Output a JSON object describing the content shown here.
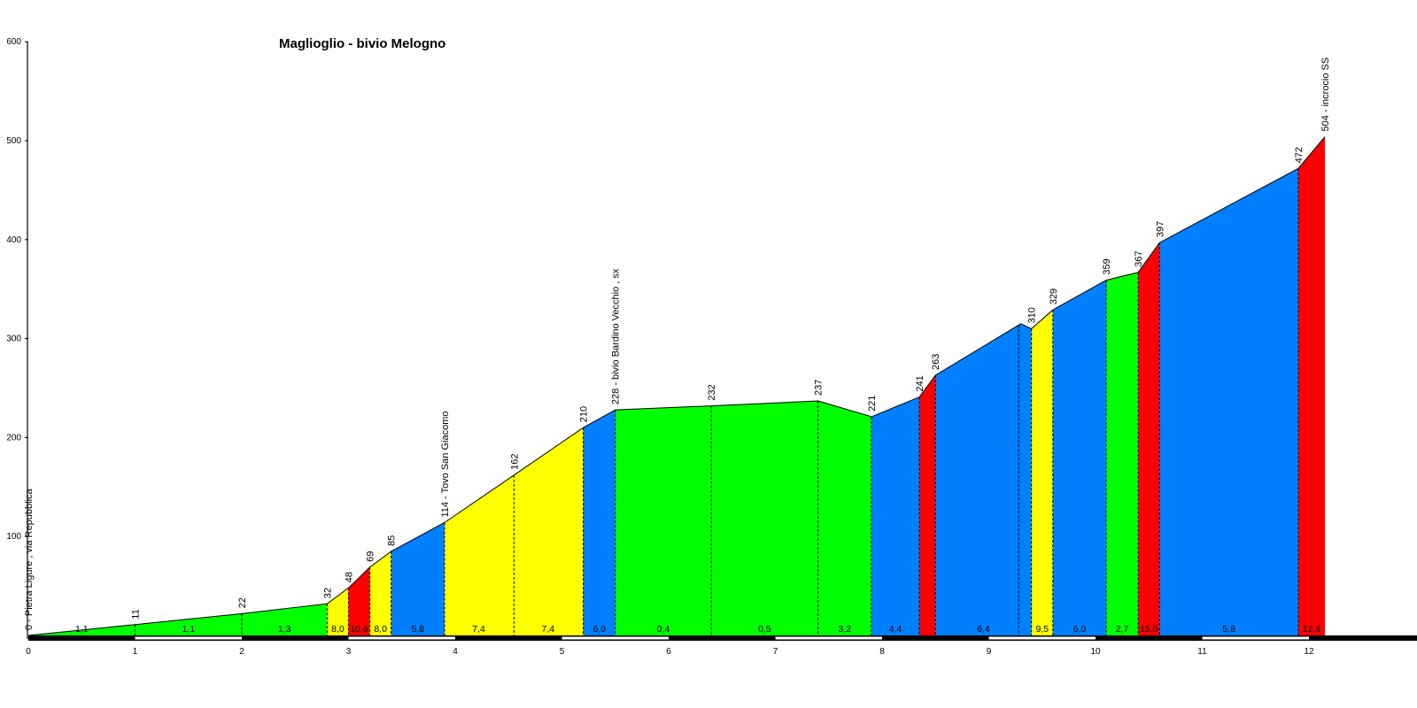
{
  "chart_data": {
    "type": "area",
    "title": "Maglioglio - bivio Melogno",
    "xlabel": "",
    "ylabel": "",
    "xlim": [
      0,
      12.85
    ],
    "ylim": [
      0,
      600
    ],
    "x_ticks": [
      "0",
      "1",
      "2",
      "3",
      "4",
      "5",
      "6",
      "7",
      "8",
      "9",
      "10",
      "11",
      "12"
    ],
    "y_ticks": [
      "100",
      "200",
      "300",
      "400",
      "500",
      "600"
    ],
    "grid": false,
    "profile": [
      {
        "x": 0.0,
        "y": 0
      },
      {
        "x": 1.0,
        "y": 11
      },
      {
        "x": 2.0,
        "y": 22
      },
      {
        "x": 2.8,
        "y": 32
      },
      {
        "x": 3.0,
        "y": 48
      },
      {
        "x": 3.2,
        "y": 69
      },
      {
        "x": 3.4,
        "y": 85
      },
      {
        "x": 3.9,
        "y": 114
      },
      {
        "x": 4.55,
        "y": 162
      },
      {
        "x": 5.2,
        "y": 210
      },
      {
        "x": 5.5,
        "y": 228
      },
      {
        "x": 6.4,
        "y": 232
      },
      {
        "x": 7.4,
        "y": 237
      },
      {
        "x": 7.9,
        "y": 221
      },
      {
        "x": 8.35,
        "y": 241
      },
      {
        "x": 8.5,
        "y": 263
      },
      {
        "x": 9.3,
        "y": 315
      },
      {
        "x": 9.4,
        "y": 310
      },
      {
        "x": 9.6,
        "y": 329
      },
      {
        "x": 10.1,
        "y": 359
      },
      {
        "x": 10.4,
        "y": 367
      },
      {
        "x": 10.6,
        "y": 397
      },
      {
        "x": 11.9,
        "y": 472
      },
      {
        "x": 12.15,
        "y": 504
      }
    ],
    "segments": [
      {
        "x0": 0.0,
        "x1": 2.8,
        "grade": "",
        "color": "#00ff00"
      },
      {
        "x0": 2.8,
        "x1": 3.0,
        "grade": "8,0",
        "color": "#ffff00"
      },
      {
        "x0": 3.0,
        "x1": 3.2,
        "grade": "10,6",
        "color": "#ff0000"
      },
      {
        "x0": 3.2,
        "x1": 3.4,
        "grade": "8,0",
        "color": "#ffff00"
      },
      {
        "x0": 3.4,
        "x1": 3.9,
        "grade": "5,8",
        "color": "#0080ff"
      },
      {
        "x0": 3.9,
        "x1": 5.2,
        "grade": "",
        "color": "#ffff00"
      },
      {
        "x0": 5.2,
        "x1": 5.5,
        "grade": "6,0",
        "color": "#0080ff"
      },
      {
        "x0": 5.5,
        "x1": 7.9,
        "grade": "",
        "color": "#00ff00"
      },
      {
        "x0": 7.9,
        "x1": 8.35,
        "grade": "4,4",
        "color": "#0080ff"
      },
      {
        "x0": 8.35,
        "x1": 8.5,
        "grade": "",
        "color": "#ff0000"
      },
      {
        "x0": 8.5,
        "x1": 9.4,
        "grade": "6,4",
        "color": "#0080ff"
      },
      {
        "x0": 9.4,
        "x1": 9.6,
        "grade": "9,5",
        "color": "#ffff00"
      },
      {
        "x0": 9.6,
        "x1": 10.1,
        "grade": "6,0",
        "color": "#0080ff"
      },
      {
        "x0": 10.1,
        "x1": 10.4,
        "grade": "2,7",
        "color": "#00ff00"
      },
      {
        "x0": 10.4,
        "x1": 10.6,
        "grade": "15,0",
        "color": "#ff0000"
      },
      {
        "x0": 10.6,
        "x1": 11.9,
        "grade": "5,8",
        "color": "#0080ff"
      },
      {
        "x0": 11.9,
        "x1": 12.15,
        "grade": "12,6",
        "color": "#ff0000"
      }
    ],
    "extra_grades": [
      {
        "x": 0.5,
        "grade": "1,1"
      },
      {
        "x": 1.5,
        "grade": "1,1"
      },
      {
        "x": 2.4,
        "grade": "1,3"
      },
      {
        "x": 4.22,
        "grade": "7,4"
      },
      {
        "x": 4.87,
        "grade": "7,4"
      },
      {
        "x": 5.95,
        "grade": "0,4"
      },
      {
        "x": 6.9,
        "grade": "0,5"
      },
      {
        "x": 7.65,
        "grade": "3,2"
      }
    ],
    "dividers": [
      1.0,
      2.0,
      2.8,
      3.0,
      3.2,
      3.4,
      3.9,
      4.55,
      5.2,
      5.5,
      6.4,
      7.4,
      7.9,
      8.35,
      8.5,
      9.28,
      9.4,
      9.6,
      10.1,
      10.4,
      10.6,
      11.9
    ],
    "annotations": [
      {
        "x": 0.0,
        "y": 0,
        "text": "0 - Pietra Ligure , via Repubblica"
      },
      {
        "x": 1.0,
        "y": 11,
        "text": "11"
      },
      {
        "x": 2.0,
        "y": 22,
        "text": "22"
      },
      {
        "x": 2.8,
        "y": 32,
        "text": "32"
      },
      {
        "x": 3.0,
        "y": 48,
        "text": "48"
      },
      {
        "x": 3.2,
        "y": 69,
        "text": "69"
      },
      {
        "x": 3.4,
        "y": 85,
        "text": "85"
      },
      {
        "x": 3.9,
        "y": 114,
        "text": "114 - Tovo San Giacomo"
      },
      {
        "x": 4.55,
        "y": 162,
        "text": "162"
      },
      {
        "x": 5.2,
        "y": 210,
        "text": "210"
      },
      {
        "x": 5.5,
        "y": 228,
        "text": "228 - bivio Bardino Vecchio , sx"
      },
      {
        "x": 6.4,
        "y": 232,
        "text": "232"
      },
      {
        "x": 7.4,
        "y": 237,
        "text": "237"
      },
      {
        "x": 7.9,
        "y": 221,
        "text": "221"
      },
      {
        "x": 8.35,
        "y": 241,
        "text": "241"
      },
      {
        "x": 8.5,
        "y": 263,
        "text": "263"
      },
      {
        "x": 9.4,
        "y": 310,
        "text": "310"
      },
      {
        "x": 9.6,
        "y": 329,
        "text": "329"
      },
      {
        "x": 10.1,
        "y": 359,
        "text": "359"
      },
      {
        "x": 10.4,
        "y": 367,
        "text": "367"
      },
      {
        "x": 10.6,
        "y": 397,
        "text": "397"
      },
      {
        "x": 11.9,
        "y": 472,
        "text": "472"
      },
      {
        "x": 12.15,
        "y": 504,
        "text": "504 - incrocio SS"
      }
    ],
    "colors": {
      "green": "#00ff00",
      "yellow": "#ffff00",
      "red": "#ff0000",
      "blue": "#0080ff",
      "axis": "#000000",
      "tick_text": "#000000"
    }
  }
}
